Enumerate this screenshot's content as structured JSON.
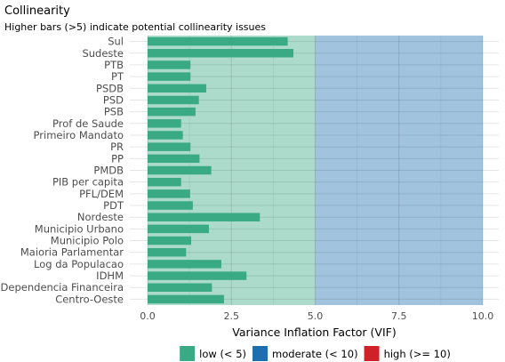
{
  "chart_data": {
    "type": "bar",
    "orientation": "horizontal",
    "title": "Collinearity",
    "subtitle": "Higher bars (>5) indicate potential collinearity issues",
    "xlabel": "Variance Inflation Factor (VIF)",
    "ylabel": "",
    "xlim": [
      0,
      10
    ],
    "x_ticks": [
      "0.0",
      "2.5",
      "5.0",
      "7.5",
      "10.0"
    ],
    "x_tick_values": [
      0,
      2.5,
      5,
      7.5,
      10
    ],
    "grid": true,
    "legend_position": "bottom",
    "categories": [
      "Sul",
      "Sudeste",
      "PTB",
      "PT",
      "PSDB",
      "PSD",
      "PSB",
      "Prof de Saude",
      "Primeiro Mandato",
      "PR",
      "PP",
      "PMDB",
      "PIB per capita",
      "PFL/DEM",
      "PDT",
      "Nordeste",
      "Municipio Urbano",
      "Municipio Polo",
      "Maioria Parlamentar",
      "Log da Populacao",
      "IDHM",
      "Dependencia Financeira",
      "Centro-Oeste"
    ],
    "values": [
      4.18,
      4.35,
      1.28,
      1.28,
      1.75,
      1.53,
      1.43,
      1.0,
      1.05,
      1.28,
      1.55,
      1.9,
      1.0,
      1.27,
      1.35,
      3.35,
      1.83,
      1.3,
      1.15,
      2.2,
      2.95,
      1.92,
      2.28
    ],
    "bar_color": "#3aaa85",
    "zones": [
      {
        "label": "low (< 5)",
        "from": 0,
        "to": 5,
        "color": "#3aaa85"
      },
      {
        "label": "moderate (< 10)",
        "from": 5,
        "to": 10,
        "color": "#1f6fb0"
      },
      {
        "label": "high (>= 10)",
        "from": 10,
        "to": null,
        "color": "#cf2127"
      }
    ]
  }
}
